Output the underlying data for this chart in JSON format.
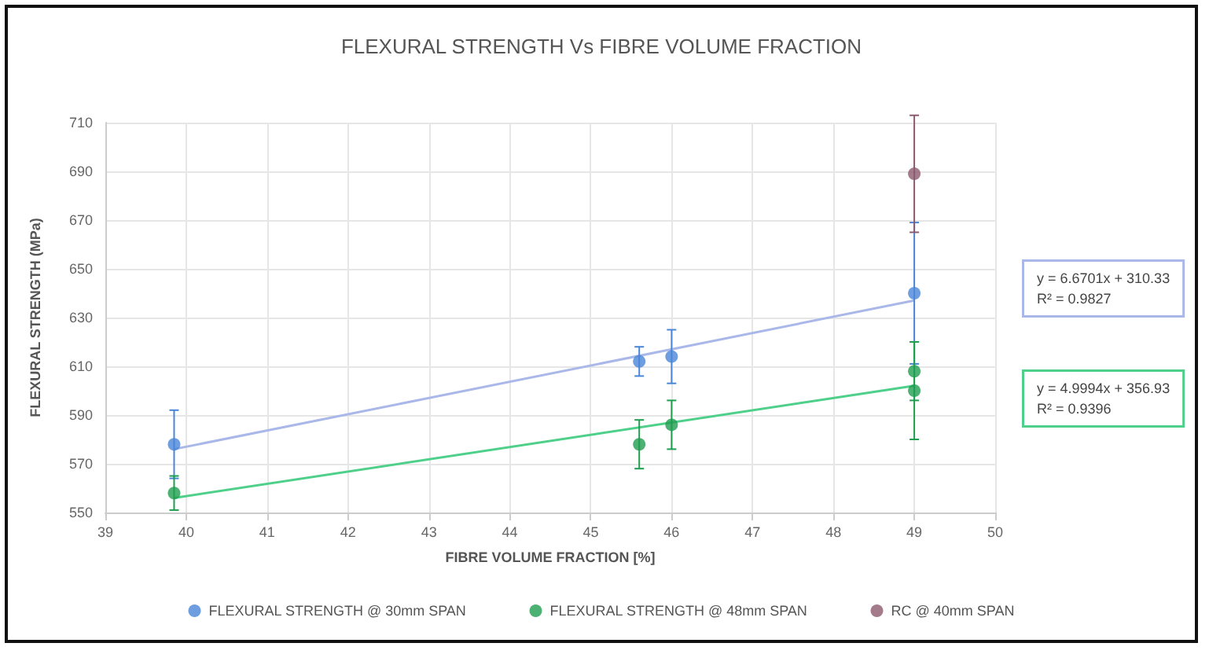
{
  "chart_data": {
    "type": "scatter",
    "title": "FLEXURAL STRENGTH Vs FIBRE VOLUME FRACTION",
    "xlabel": "FIBRE VOLUME FRACTION [%]",
    "ylabel": "FLEXURAL STRENGTH (MPa)",
    "annotations": [
      "y = 6.6701x + 310.33\nR² = 0.9827",
      "y = 4.9994x + 356.93\nR² = 0.9396"
    ],
    "series": [
      {
        "name": "FLEXURAL STRENGTH @ 30mm SPAN",
        "color": "#4a86d8",
        "x": [
          39.85,
          45.6,
          46,
          49
        ],
        "values": [
          578,
          612,
          614,
          640
        ],
        "errors": [
          14,
          6,
          11,
          29
        ]
      },
      {
        "name": "FLEXURAL STRENGTH @ 48mm SPAN",
        "color": "#1f9e4f",
        "x": [
          39.85,
          45.6,
          46,
          49,
          49
        ],
        "values": [
          558,
          578,
          586,
          608,
          600
        ],
        "errors": [
          7,
          10,
          10,
          12,
          20
        ]
      },
      {
        "name": "RC @ 40mm SPAN",
        "color": "#8c5a6e",
        "x": [
          49
        ],
        "values": [
          689
        ],
        "errors": [
          24
        ]
      },
      {
        "type": "line",
        "color": "#a9b8e8",
        "x": [
          39.85,
          49
        ],
        "values": [
          576,
          637
        ],
        "marker": "none"
      },
      {
        "type": "line",
        "color": "#4fd08a",
        "x": [
          39.85,
          49
        ],
        "values": [
          556,
          602
        ],
        "marker": "none"
      }
    ],
    "xlim": [
      39,
      50
    ],
    "xticks": [
      39,
      40,
      41,
      42,
      43,
      44,
      45,
      46,
      47,
      48,
      49,
      50
    ],
    "ylim": [
      550,
      710
    ],
    "yticks": [
      550,
      570,
      590,
      610,
      630,
      650,
      670,
      690,
      710
    ],
    "grid": true,
    "legend": "bottom",
    "marker": "circle"
  }
}
